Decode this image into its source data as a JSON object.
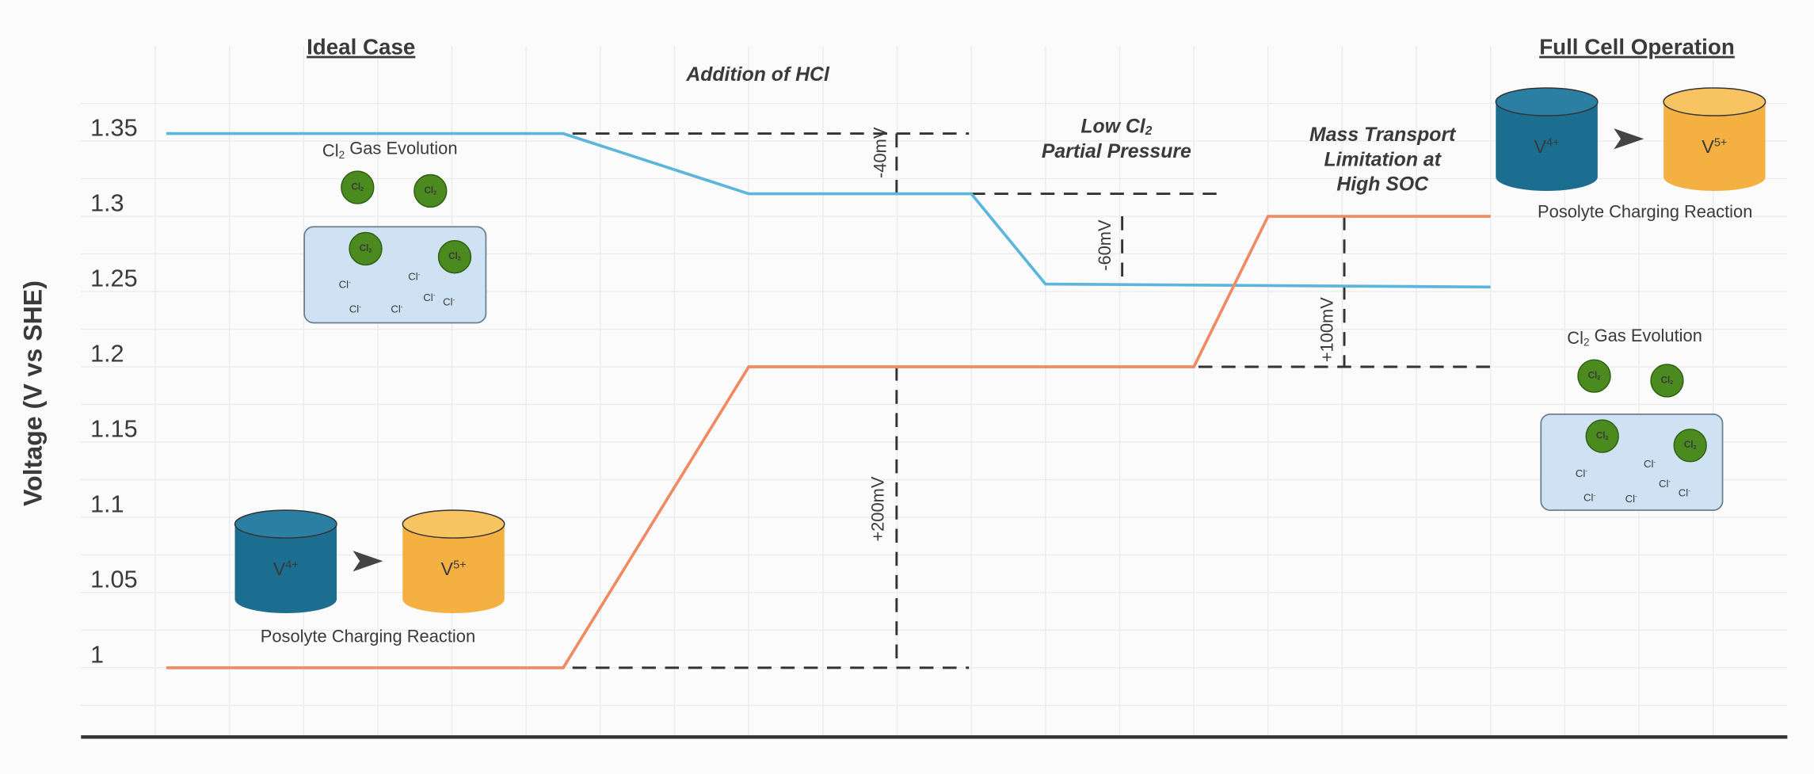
{
  "chart_data": {
    "type": "line",
    "ylabel": "Voltage (V vs SHE)",
    "ylim": [
      0.954,
      1.413
    ],
    "yticks": [
      1,
      1.05,
      1.1,
      1.15,
      1.2,
      1.25,
      1.3,
      1.35
    ],
    "xlim": [
      -1,
      22
    ],
    "grid": true,
    "series": [
      {
        "color": "#5bb5dc",
        "x": [
          0.15,
          5.5,
          8,
          11,
          12,
          18
        ],
        "values": [
          1.355,
          1.355,
          1.315,
          1.315,
          1.255,
          1.253
        ]
      },
      {
        "color": "#f08a62",
        "x": [
          0.15,
          5.5,
          8,
          14,
          15,
          18
        ],
        "values": [
          1.0,
          1.0,
          1.2,
          1.2,
          1.3,
          1.3
        ]
      }
    ],
    "events": [
      [
        [
          "Addition of HCl"
        ]
      ],
      [
        [
          "Low Cl",
          "2"
        ],
        [
          "Partial Pressure"
        ]
      ],
      [
        [
          "Mass Transport"
        ],
        [
          "Limitation at"
        ],
        [
          "High SOC"
        ]
      ]
    ],
    "shifts": [
      "-40mV",
      "-60mV",
      "+200mV",
      "+100mV"
    ],
    "panels": [
      {
        "title": "Ideal Case",
        "gas": [
          "Cl",
          "2",
          " Gas Evolution"
        ],
        "molecule": [
          "Cl",
          "2"
        ],
        "ion": [
          "Cl",
          "-"
        ],
        "reactant": [
          "V",
          "4+"
        ],
        "product": [
          "V",
          "5+"
        ],
        "reaction": "Posolyte Charging Reaction"
      },
      {
        "title": "Full Cell Operation",
        "gas": [
          "Cl",
          "2",
          " Gas Evolution"
        ],
        "molecule": [
          "Cl",
          "2"
        ],
        "ion": [
          "Cl",
          "-"
        ],
        "reactant": [
          "V",
          "4+"
        ],
        "product": [
          "V",
          "5+"
        ],
        "reaction": "Posolyte Charging Reaction"
      }
    ]
  }
}
